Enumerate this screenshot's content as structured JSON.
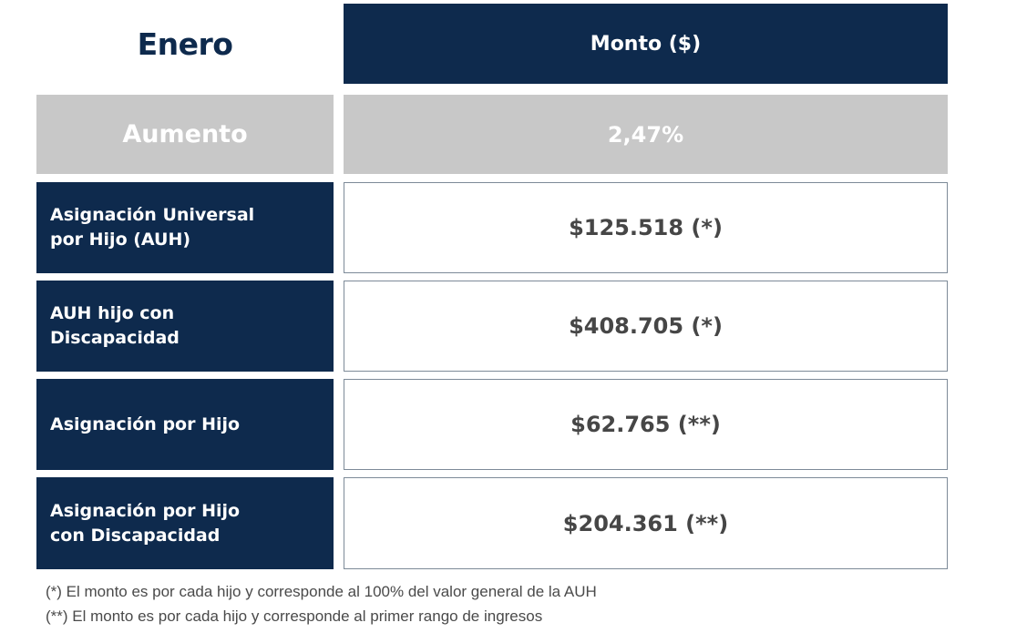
{
  "header": {
    "month": "Enero",
    "amount_column": "Monto ($)"
  },
  "increase": {
    "label": "Aumento",
    "value": "2,47%"
  },
  "colors": {
    "navy": "#0e2a4d",
    "gray": "#c8c8c8",
    "value_text": "#464646"
  },
  "rows": [
    {
      "label": "Asignación Universal por Hijo (AUH)",
      "amount": "$125.518 (*)"
    },
    {
      "label": "AUH hijo con Discapacidad",
      "amount": "$408.705 (*)"
    },
    {
      "label": "Asignación por Hijo",
      "amount": "$62.765 (**)"
    },
    {
      "label": "Asignación por Hijo con Discapacidad",
      "amount": "$204.361 (**)"
    }
  ],
  "footnotes": [
    "(*) El monto es por cada hijo y corresponde al 100% del valor general de la AUH",
    "(**) El monto es por cada hijo y corresponde al primer rango de ingresos"
  ]
}
